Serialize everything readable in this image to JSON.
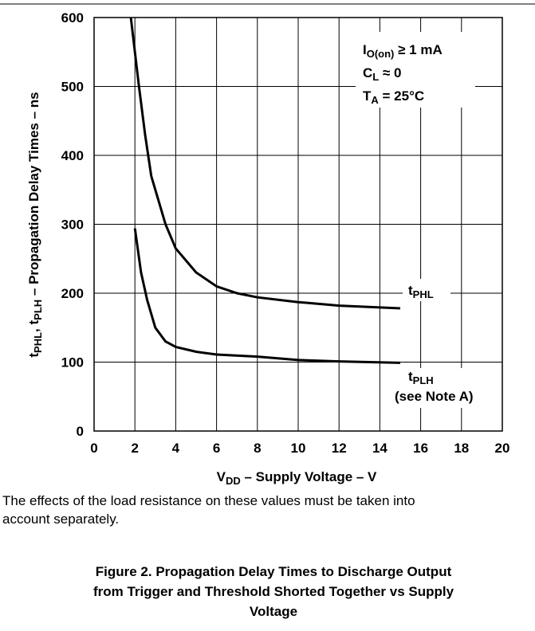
{
  "chart_data": {
    "type": "line",
    "xlabel": [
      {
        "text": "V"
      },
      {
        "text": "DD",
        "sub": true
      },
      {
        "text": " – Supply Voltage – V"
      }
    ],
    "ylabel": [
      {
        "text": "t"
      },
      {
        "text": "PHL",
        "sub": true
      },
      {
        "text": ", t"
      },
      {
        "text": "PLH",
        "sub": true
      },
      {
        "text": "  – Propagation Delay Times – ns"
      }
    ],
    "xlim": [
      0,
      20
    ],
    "xticks": [
      0,
      2,
      4,
      6,
      8,
      10,
      12,
      14,
      16,
      18,
      20
    ],
    "ylim": [
      0,
      600
    ],
    "yticks": [
      0,
      100,
      200,
      300,
      400,
      500,
      600
    ],
    "grid": true,
    "annotations": [
      [
        {
          "text": "I"
        },
        {
          "text": "O(on)",
          "sub": true
        },
        {
          "text": " ≥ 1 mA"
        }
      ],
      [
        {
          "text": "C"
        },
        {
          "text": "L",
          "sub": true
        },
        {
          "text": " ≈ 0"
        }
      ],
      [
        {
          "text": "T"
        },
        {
          "text": "A",
          "sub": true
        },
        {
          "text": " = 25°C"
        }
      ]
    ],
    "series": [
      {
        "name": [
          {
            "text": "t"
          },
          {
            "text": "PHL",
            "sub": true
          }
        ],
        "color": "#000000",
        "x": [
          1.8,
          2.2,
          2.5,
          2.8,
          3.5,
          4,
          5,
          6,
          7,
          8,
          10,
          12,
          15
        ],
        "values": [
          600,
          500,
          430,
          370,
          300,
          265,
          230,
          210,
          200,
          194,
          187,
          182,
          178
        ]
      },
      {
        "name": [
          {
            "text": "t"
          },
          {
            "text": "PLH",
            "sub": true
          }
        ],
        "note": "(see Note A)",
        "color": "#000000",
        "x": [
          2.0,
          2.3,
          2.6,
          3,
          3.5,
          4,
          5,
          6,
          8,
          10,
          12,
          15
        ],
        "values": [
          294,
          230,
          190,
          150,
          130,
          122,
          115,
          111,
          108,
          103,
          101,
          99
        ]
      }
    ]
  },
  "note": [
    "The effects of the load resistance on these values must be taken into",
    "account separately."
  ],
  "caption": [
    "Figure 2. Propagation Delay Times to Discharge Output",
    "from Trigger and Threshold Shorted Together vs Supply",
    "Voltage"
  ]
}
